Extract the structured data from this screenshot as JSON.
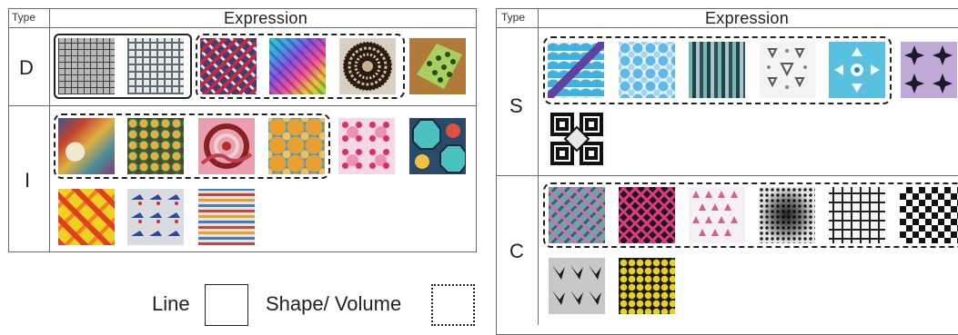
{
  "left_table": {
    "col_type_header": "Type",
    "col_expression_header": "Expression",
    "rows": [
      {
        "label": "D"
      },
      {
        "label": "I"
      }
    ]
  },
  "right_table": {
    "col_type_header": "Type",
    "col_expression_header": "Expression",
    "rows": [
      {
        "label": "S"
      },
      {
        "label": "C"
      }
    ]
  },
  "legend": {
    "line_label": "Line",
    "shape_volume_label": "Shape/ Volume"
  }
}
